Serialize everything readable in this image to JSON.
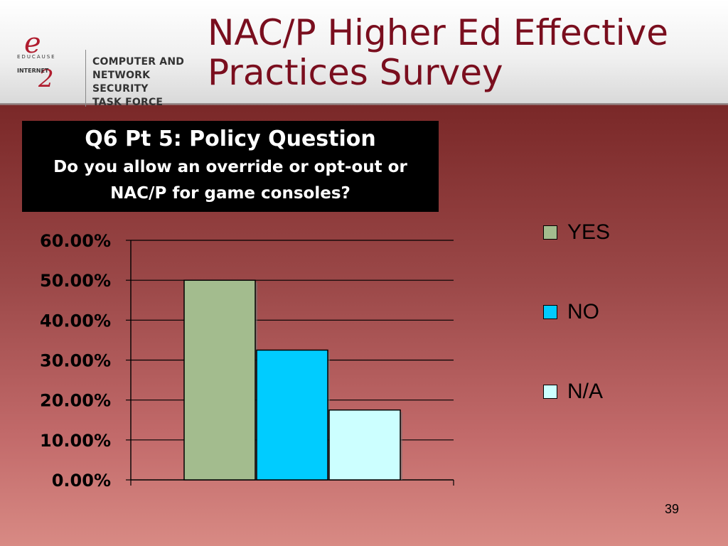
{
  "header": {
    "logo": {
      "educause_letter": "e",
      "educause_text": "EDUCAUSE",
      "internet2_text": "INTERNET",
      "internet2_number": "2",
      "taskforce_lines": [
        "COMPUTER AND NETWORK",
        "SECURITY",
        "TASK FORCE"
      ]
    },
    "title_line1": "NAC/P Higher Ed Effective",
    "title_line2": "Practices Survey"
  },
  "question": {
    "title": "Q6 Pt 5: Policy Question",
    "line1": "Do you allow an override or opt-out or",
    "line2": "NAC/P for game consoles?"
  },
  "chart_data": {
    "type": "bar",
    "categories": [
      ""
    ],
    "series": [
      {
        "name": "YES",
        "values": [
          50.0
        ],
        "color": "#a3bc8e"
      },
      {
        "name": "NO",
        "values": [
          32.5
        ],
        "color": "#00ccff"
      },
      {
        "name": "N/A",
        "values": [
          17.5
        ],
        "color": "#ccffff"
      }
    ],
    "ylim": [
      0,
      60
    ],
    "yticks": [
      "0.00%",
      "10.00%",
      "20.00%",
      "30.00%",
      "40.00%",
      "50.00%",
      "60.00%"
    ],
    "grid": true,
    "legend": "right"
  },
  "slide_number": "39"
}
